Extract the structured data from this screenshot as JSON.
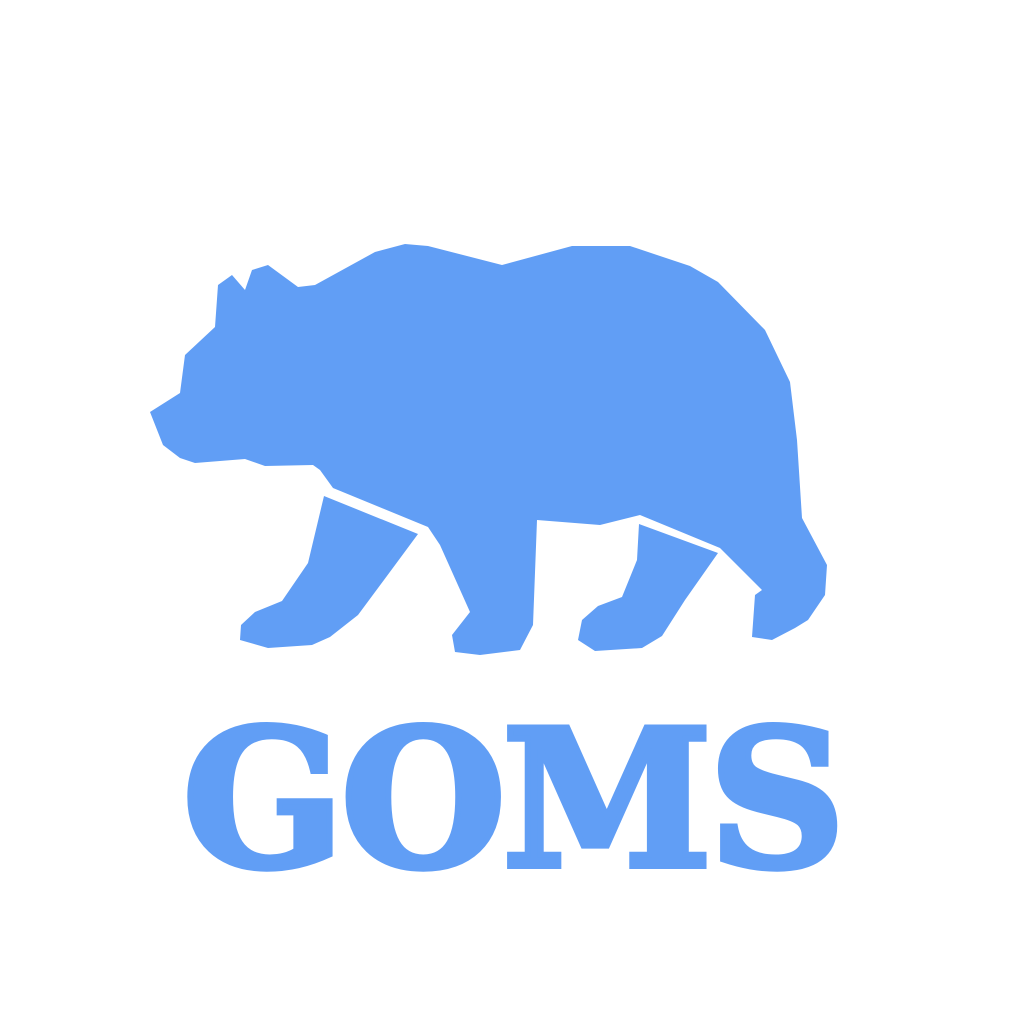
{
  "logo": {
    "icon": "bear-icon",
    "brand_name": "GOMS",
    "color": "#619ef5",
    "background": "#ffffff"
  }
}
